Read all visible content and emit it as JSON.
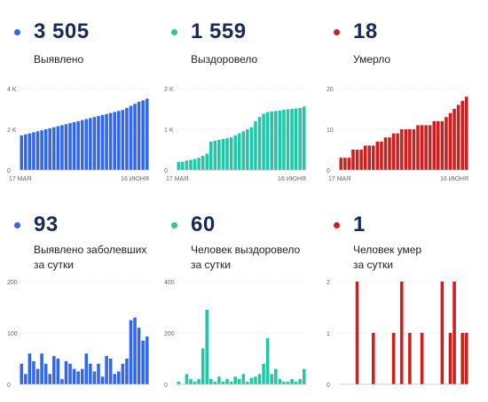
{
  "colors": {
    "blue": "#3366ee",
    "teal": "#22c7a8",
    "red": "#d31d1d",
    "axis": "#bdbdbd",
    "grid": "#e2e2e2",
    "tick": "#666666"
  },
  "panels": [
    {
      "dot_color": "#3366ee",
      "value": "3 505",
      "label": "Выявлено"
    },
    {
      "dot_color": "#22c7a8",
      "value": "1 559",
      "label": "Выздоровело"
    },
    {
      "dot_color": "#d31d1d",
      "value": "18",
      "label": "Умерло"
    },
    {
      "dot_color": "#3366ee",
      "value": "93",
      "label": "Выявлено заболевших\nза сутки"
    },
    {
      "dot_color": "#22c7a8",
      "value": "60",
      "label": "Человек выздоровело\nза сутки"
    },
    {
      "dot_color": "#d31d1d",
      "value": "1",
      "label": "Человек умер\nза сутки"
    }
  ],
  "chart_data": [
    {
      "type": "bar",
      "color": "#3366ee",
      "x_start_label": "17 МАЯ",
      "x_end_label": "16 ИЮНЯ",
      "ylim": [
        0,
        4000
      ],
      "yticks": [
        0,
        2000,
        4000
      ],
      "ytick_labels": [
        "0",
        "2 K",
        "4 K"
      ],
      "values": [
        1700,
        1750,
        1800,
        1850,
        1900,
        1950,
        2000,
        2050,
        2100,
        2150,
        2200,
        2250,
        2300,
        2350,
        2400,
        2450,
        2500,
        2550,
        2600,
        2650,
        2700,
        2750,
        2800,
        2850,
        2900,
        2950,
        3050,
        3150,
        3250,
        3350,
        3420,
        3505
      ]
    },
    {
      "type": "bar",
      "color": "#22c7a8",
      "x_start_label": "17 МАЯ",
      "x_end_label": "16 ИЮНЯ",
      "ylim": [
        0,
        2000
      ],
      "yticks": [
        0,
        1000,
        2000
      ],
      "ytick_labels": [
        "0",
        "1 K",
        "2 K"
      ],
      "values": [
        200,
        200,
        230,
        250,
        270,
        300,
        350,
        400,
        700,
        720,
        740,
        760,
        780,
        800,
        850,
        900,
        950,
        1000,
        1050,
        1200,
        1300,
        1380,
        1420,
        1440,
        1450,
        1460,
        1480,
        1490,
        1500,
        1510,
        1520,
        1559
      ]
    },
    {
      "type": "bar",
      "color": "#d31d1d",
      "x_start_label": "17 МАЯ",
      "x_end_label": "16 ИЮНЯ",
      "ylim": [
        0,
        20
      ],
      "yticks": [
        0,
        10,
        20
      ],
      "ytick_labels": [
        "0",
        "10",
        "20"
      ],
      "values": [
        3,
        3,
        3,
        5,
        5,
        5,
        6,
        6,
        6,
        7,
        7,
        8,
        8,
        9,
        9,
        10,
        10,
        10,
        10,
        11,
        11,
        11,
        11,
        12,
        12,
        12,
        13,
        14,
        15,
        16,
        17,
        18
      ]
    },
    {
      "type": "bar",
      "color": "#3366ee",
      "ylim": [
        0,
        200
      ],
      "yticks": [
        0,
        100,
        200
      ],
      "ytick_labels": [
        "0",
        "100",
        "200"
      ],
      "values": [
        40,
        20,
        60,
        45,
        30,
        60,
        40,
        20,
        55,
        50,
        10,
        45,
        40,
        30,
        25,
        30,
        60,
        40,
        25,
        40,
        15,
        55,
        50,
        20,
        25,
        40,
        50,
        125,
        130,
        110,
        85,
        93
      ]
    },
    {
      "type": "bar",
      "color": "#22c7a8",
      "ylim": [
        0,
        400
      ],
      "yticks": [
        0,
        200,
        400
      ],
      "ytick_labels": [
        "0",
        "200",
        "400"
      ],
      "values": [
        10,
        0,
        40,
        20,
        10,
        20,
        140,
        290,
        20,
        10,
        30,
        10,
        20,
        10,
        30,
        20,
        40,
        10,
        25,
        30,
        40,
        80,
        180,
        40,
        60,
        20,
        10,
        10,
        20,
        10,
        20,
        60
      ]
    },
    {
      "type": "bar",
      "color": "#d31d1d",
      "ylim": [
        0,
        2
      ],
      "yticks": [
        0,
        1,
        2
      ],
      "ytick_labels": [
        "0",
        "1",
        "2"
      ],
      "values": [
        0,
        0,
        0,
        0,
        2,
        0,
        0,
        0,
        1,
        0,
        0,
        0,
        0,
        1,
        0,
        2,
        0,
        1,
        0,
        0,
        1,
        0,
        0,
        0,
        0,
        2,
        0,
        1,
        2,
        0,
        1,
        1
      ]
    }
  ]
}
